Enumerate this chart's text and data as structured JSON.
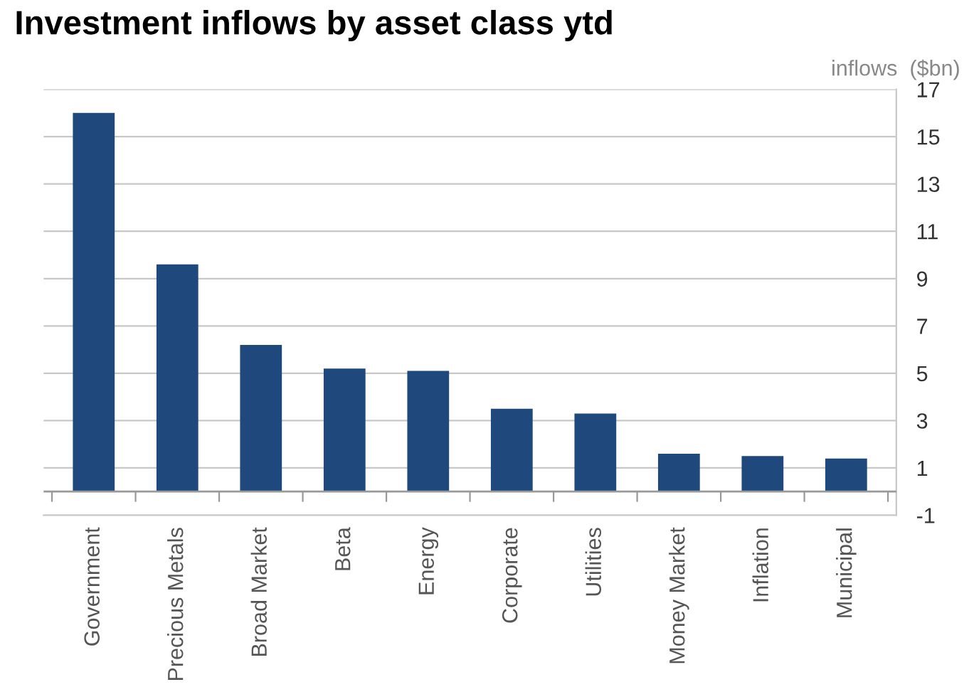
{
  "chart_data": {
    "type": "bar",
    "title": "Investment inflows by asset class ytd",
    "ylabel": "inflows  ($bn)",
    "categories": [
      "Government",
      "Precious Metals",
      "Broad Market",
      "Beta",
      "Energy",
      "Corporate",
      "Utilities",
      "Money Market",
      "Inflation",
      "Municipal"
    ],
    "values": [
      16.0,
      9.6,
      6.2,
      5.2,
      5.1,
      3.5,
      3.3,
      1.6,
      1.5,
      1.4
    ],
    "color": "#1f497d",
    "ylim": [
      -1,
      17
    ],
    "yticks": [
      -1,
      1,
      3,
      5,
      7,
      9,
      11,
      13,
      15,
      17
    ],
    "grid": "y",
    "legend": false
  }
}
